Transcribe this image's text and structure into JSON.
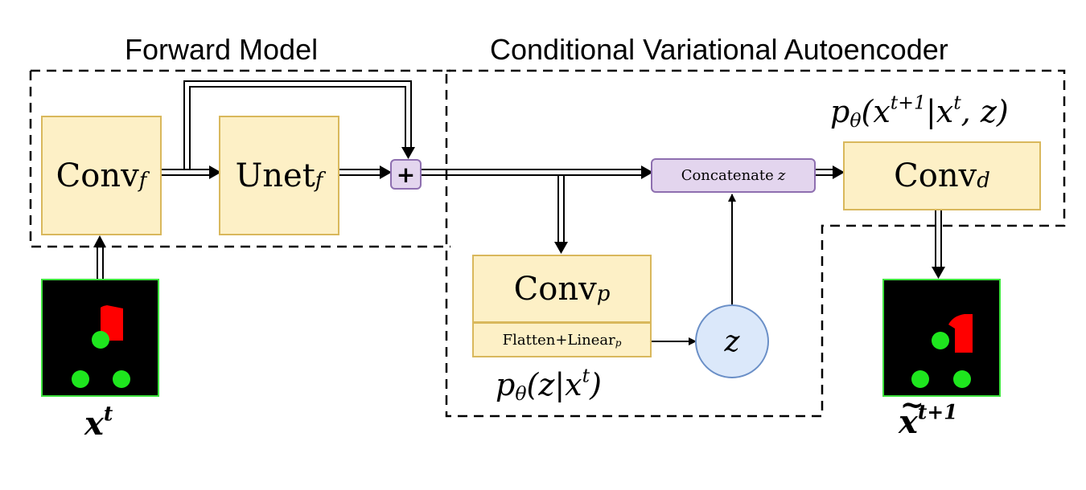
{
  "sections": {
    "forward_model": "Forward Model",
    "cvae": "Conditional Variational Autoencoder"
  },
  "blocks": {
    "conv_f": {
      "name": "Conv",
      "sub": "f"
    },
    "unet_f": {
      "name": "Unet",
      "sub": "f"
    },
    "conv_p": {
      "name": "Conv",
      "sub": "p"
    },
    "flatten": {
      "name": "Flatten+Linear",
      "sub": "p"
    },
    "conv_d": {
      "name": "Conv",
      "sub": "d"
    },
    "plus": "+",
    "concat": {
      "name": "Concatenate",
      "var": "z"
    },
    "z": "z"
  },
  "math": {
    "prior": {
      "p": "p",
      "theta": "θ",
      "open": "(z|x",
      "t": "t",
      "close": ")"
    },
    "decoder": {
      "p": "p",
      "theta": "θ",
      "open": "(x",
      "t1": "t+1",
      "mid": "|x",
      "t": "t",
      "close": ", z)"
    },
    "input": {
      "x": "x",
      "t": "t"
    },
    "output": {
      "x": "x",
      "t1": "t+1"
    }
  },
  "colors": {
    "block_fill": "#fdf0c6",
    "block_border": "#d9b85c",
    "op_fill": "#e3d5ee",
    "op_border": "#8e6fb0",
    "latent_fill": "#dbe8fa",
    "latent_border": "#6a8fc7",
    "frame_border": "#3ee23e",
    "object_red": "#ff0000",
    "object_green": "#1ee61e"
  }
}
